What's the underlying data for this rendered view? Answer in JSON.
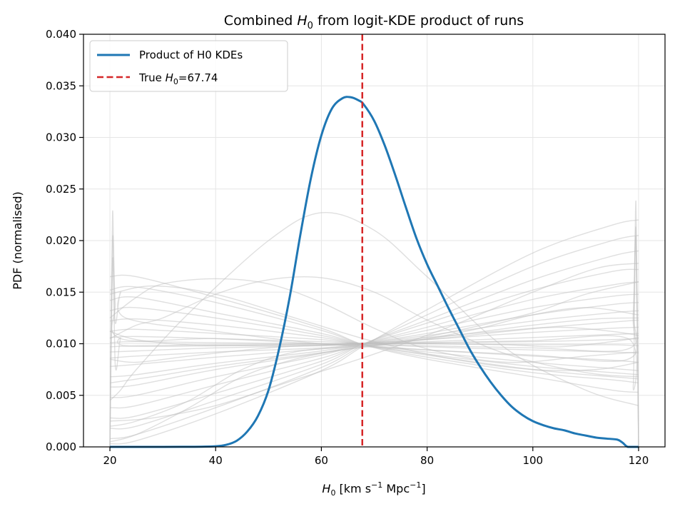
{
  "chart_data": {
    "type": "line",
    "title_prefix": "Combined ",
    "title_symbol": "H",
    "title_sub": "0",
    "title_suffix": " from logit-KDE product of runs",
    "xlabel_symbol": "H",
    "xlabel_sub": "0",
    "xlabel_units_a": " [km s",
    "xlabel_exp_a": "−1",
    "xlabel_units_b": " Mpc",
    "xlabel_exp_b": "−1",
    "xlabel_close": "]",
    "ylabel": "PDF (normalised)",
    "xlim": [
      15,
      125
    ],
    "ylim": [
      0,
      0.04
    ],
    "xticks": [
      "20",
      "40",
      "60",
      "80",
      "100",
      "120"
    ],
    "yticks": [
      "0.000",
      "0.005",
      "0.010",
      "0.015",
      "0.020",
      "0.025",
      "0.030",
      "0.035",
      "0.040"
    ],
    "grid": true,
    "legend_position": "upper-left",
    "legend_product": "Product of H0 KDEs",
    "legend_true_prefix": "True ",
    "legend_true_symbol": "H",
    "legend_true_sub": "0",
    "legend_true_suffix": "=67.74",
    "true_h0": 67.74,
    "product_series": {
      "name": "Product of H0 KDEs",
      "color": "#1f77b4",
      "x": [
        20,
        30,
        36,
        40,
        42,
        44,
        46,
        48,
        50,
        52,
        54,
        56,
        58,
        60,
        62,
        64,
        65.5,
        67,
        68,
        70,
        72,
        74,
        76,
        78,
        80,
        82,
        84,
        86,
        88,
        90,
        92,
        94,
        96,
        98,
        100,
        102,
        104,
        106,
        108,
        110,
        112,
        114,
        116,
        117,
        118,
        120
      ],
      "y": [
        0,
        0,
        1e-05,
        6e-05,
        0.0002,
        0.0006,
        0.0015,
        0.003,
        0.0055,
        0.0095,
        0.0145,
        0.0205,
        0.026,
        0.0302,
        0.0328,
        0.0338,
        0.0339,
        0.0336,
        0.0332,
        0.0316,
        0.0292,
        0.0263,
        0.0232,
        0.0202,
        0.0177,
        0.0156,
        0.0135,
        0.0115,
        0.0095,
        0.0078,
        0.0063,
        0.005,
        0.0039,
        0.0031,
        0.0025,
        0.0021,
        0.0018,
        0.0016,
        0.0013,
        0.0011,
        0.0009,
        0.0008,
        0.0007,
        0.0004,
        0,
        0
      ]
    },
    "true_line": {
      "color": "#d62728"
    },
    "runs_color": "#bfbfbf",
    "runs": [
      {
        "x": [
          20,
          25,
          40,
          60,
          68,
          80,
          100,
          115,
          120
        ],
        "y": [
          0.0165,
          0.0165,
          0.0145,
          0.0115,
          0.0099,
          0.0085,
          0.0068,
          0.0055,
          0.0053
        ]
      },
      {
        "x": [
          20,
          25,
          40,
          60,
          68,
          80,
          100,
          115,
          120
        ],
        "y": [
          0.0152,
          0.0155,
          0.014,
          0.0113,
          0.0099,
          0.0087,
          0.0072,
          0.0065,
          0.0062
        ]
      },
      {
        "x": [
          20,
          25,
          40,
          60,
          68,
          80,
          100,
          115,
          120
        ],
        "y": [
          0.0142,
          0.0145,
          0.013,
          0.011,
          0.0099,
          0.0089,
          0.0075,
          0.0068,
          0.0066
        ]
      },
      {
        "x": [
          20,
          25,
          40,
          60,
          68,
          80,
          100,
          115,
          120
        ],
        "y": [
          0.0132,
          0.0135,
          0.0125,
          0.0108,
          0.0099,
          0.009,
          0.0078,
          0.0072,
          0.007
        ]
      },
      {
        "x": [
          20,
          25,
          40,
          60,
          68,
          80,
          100,
          115,
          120
        ],
        "y": [
          0.0122,
          0.0124,
          0.0118,
          0.0106,
          0.0099,
          0.0092,
          0.0082,
          0.0076,
          0.0074
        ]
      },
      {
        "x": [
          20,
          25,
          40,
          60,
          68,
          80,
          100,
          115,
          120
        ],
        "y": [
          0.0112,
          0.0114,
          0.011,
          0.0104,
          0.0099,
          0.0094,
          0.0088,
          0.0084,
          0.0082
        ]
      },
      {
        "x": [
          20,
          25,
          40,
          60,
          68,
          80,
          100,
          115,
          120
        ],
        "y": [
          0.0106,
          0.0107,
          0.0105,
          0.0102,
          0.01,
          0.0097,
          0.0094,
          0.0092,
          0.0091
        ]
      },
      {
        "x": [
          20,
          25,
          40,
          60,
          68,
          80,
          100,
          115,
          120
        ],
        "y": [
          0.0101,
          0.0102,
          0.0101,
          0.01,
          0.01,
          0.01,
          0.0099,
          0.0099,
          0.0098
        ]
      },
      {
        "x": [
          20,
          25,
          40,
          60,
          68,
          80,
          100,
          115,
          120
        ],
        "y": [
          0.0097,
          0.0098,
          0.0099,
          0.0099,
          0.01,
          0.0101,
          0.0102,
          0.0104,
          0.0105
        ]
      },
      {
        "x": [
          20,
          25,
          40,
          60,
          68,
          80,
          100,
          115,
          120
        ],
        "y": [
          0.0092,
          0.0093,
          0.0096,
          0.0098,
          0.01,
          0.0102,
          0.0106,
          0.0109,
          0.011
        ]
      },
      {
        "x": [
          20,
          25,
          40,
          60,
          68,
          80,
          100,
          115,
          120
        ],
        "y": [
          0.0086,
          0.0088,
          0.0092,
          0.0096,
          0.01,
          0.0104,
          0.0111,
          0.0115,
          0.0116
        ]
      },
      {
        "x": [
          20,
          25,
          40,
          60,
          68,
          80,
          100,
          115,
          120
        ],
        "y": [
          0.0078,
          0.008,
          0.0087,
          0.0095,
          0.01,
          0.0106,
          0.0115,
          0.0121,
          0.0123
        ]
      },
      {
        "x": [
          20,
          25,
          40,
          60,
          68,
          80,
          100,
          115,
          120
        ],
        "y": [
          0.0068,
          0.007,
          0.0081,
          0.0093,
          0.01,
          0.0108,
          0.0122,
          0.013,
          0.0132
        ]
      },
      {
        "x": [
          20,
          25,
          40,
          60,
          68,
          80,
          100,
          115,
          120
        ],
        "y": [
          0.0058,
          0.006,
          0.0075,
          0.0091,
          0.01,
          0.011,
          0.0128,
          0.0138,
          0.014
        ]
      },
      {
        "x": [
          20,
          25,
          40,
          60,
          68,
          80,
          100,
          115,
          120
        ],
        "y": [
          0.0048,
          0.005,
          0.0068,
          0.0089,
          0.01,
          0.0113,
          0.0135,
          0.0146,
          0.0148
        ]
      },
      {
        "x": [
          20,
          25,
          40,
          60,
          68,
          80,
          100,
          115,
          120
        ],
        "y": [
          0.0038,
          0.004,
          0.006,
          0.0086,
          0.01,
          0.0116,
          0.0143,
          0.0157,
          0.016
        ]
      },
      {
        "x": [
          20,
          25,
          40,
          60,
          68,
          80,
          100,
          115,
          120
        ],
        "y": [
          0.0028,
          0.003,
          0.0052,
          0.0083,
          0.01,
          0.012,
          0.0152,
          0.017,
          0.0172
        ]
      },
      {
        "x": [
          20,
          25,
          40,
          60,
          68,
          80,
          100,
          115,
          120
        ],
        "y": [
          0.0018,
          0.002,
          0.0045,
          0.008,
          0.01,
          0.0123,
          0.0162,
          0.0185,
          0.019
        ]
      },
      {
        "x": [
          20,
          25,
          40,
          60,
          68,
          80,
          100,
          115,
          120
        ],
        "y": [
          0.0008,
          0.0012,
          0.0038,
          0.0077,
          0.0099,
          0.0128,
          0.0175,
          0.02,
          0.0205
        ]
      },
      {
        "x": [
          20,
          25,
          40,
          60,
          68,
          80,
          100,
          115,
          120
        ],
        "y": [
          0.0003,
          0.0006,
          0.0032,
          0.0074,
          0.0098,
          0.0133,
          0.0188,
          0.0215,
          0.022
        ]
      },
      {
        "x": [
          20,
          22,
          25,
          35,
          50,
          60,
          70,
          80,
          95,
          110,
          120
        ],
        "y": [
          0.0045,
          0.0055,
          0.0075,
          0.013,
          0.02,
          0.0227,
          0.021,
          0.0165,
          0.0095,
          0.0055,
          0.004
        ]
      },
      {
        "x": [
          20,
          25,
          30,
          40,
          50,
          60,
          70,
          80,
          95,
          110,
          120
        ],
        "y": [
          0.0105,
          0.0118,
          0.0125,
          0.0148,
          0.0162,
          0.0164,
          0.015,
          0.0123,
          0.009,
          0.0072,
          0.0068
        ]
      },
      {
        "x": [
          20,
          25,
          30,
          40,
          50,
          60,
          70,
          80,
          95,
          110,
          120
        ],
        "y": [
          0.0125,
          0.0145,
          0.0158,
          0.0163,
          0.0158,
          0.014,
          0.0115,
          0.0095,
          0.0082,
          0.0088,
          0.0092
        ]
      },
      {
        "x": [
          20,
          25,
          35,
          45,
          55,
          65,
          75,
          85,
          100,
          110,
          120
        ],
        "y": [
          0.0005,
          0.0012,
          0.0038,
          0.0068,
          0.0085,
          0.0095,
          0.0102,
          0.0112,
          0.013,
          0.0148,
          0.016
        ]
      },
      {
        "x": [
          20,
          25,
          35,
          45,
          55,
          68,
          80,
          90,
          100,
          110,
          120
        ],
        "y": [
          0.002,
          0.0025,
          0.0045,
          0.0075,
          0.0092,
          0.0098,
          0.0105,
          0.0115,
          0.0128,
          0.0135,
          0.0128
        ]
      },
      {
        "x": [
          20,
          25,
          35,
          50,
          65,
          80,
          95,
          105,
          115,
          120
        ],
        "y": [
          0.0085,
          0.0082,
          0.0088,
          0.0096,
          0.01,
          0.0104,
          0.0112,
          0.0116,
          0.0112,
          0.0108
        ]
      },
      {
        "x": [
          20,
          25,
          35,
          50,
          65,
          80,
          95,
          105,
          115,
          120
        ],
        "y": [
          0.0112,
          0.0104,
          0.0099,
          0.0098,
          0.0099,
          0.01,
          0.0099,
          0.0097,
          0.0102,
          0.0106
        ]
      },
      {
        "x": [
          20,
          28,
          40,
          55,
          70,
          85,
          100,
          112,
          120
        ],
        "y": [
          0.0025,
          0.0028,
          0.004,
          0.0065,
          0.009,
          0.0118,
          0.015,
          0.0173,
          0.0178
        ]
      },
      {
        "x": [
          20,
          28,
          40,
          55,
          70,
          85,
          100,
          112,
          120
        ],
        "y": [
          0.0148,
          0.0156,
          0.0148,
          0.0125,
          0.0102,
          0.0085,
          0.0075,
          0.0075,
          0.0082
        ]
      },
      {
        "x": [
          20,
          28,
          40,
          55,
          70,
          85,
          100,
          112,
          120
        ],
        "y": [
          0.0062,
          0.0068,
          0.0078,
          0.0088,
          0.0098,
          0.0108,
          0.0118,
          0.0124,
          0.0125
        ]
      },
      {
        "x": [
          20,
          20.5,
          21,
          22,
          23,
          40,
          60,
          80,
          100,
          118,
          119,
          119.5,
          120
        ],
        "y": [
          0,
          0.018,
          0.012,
          0.015,
          0.0125,
          0.0112,
          0.01,
          0.0094,
          0.0089,
          0.0085,
          0.0125,
          0.021,
          0
        ]
      },
      {
        "x": [
          20,
          20.5,
          21,
          22,
          23,
          40,
          60,
          80,
          100,
          118,
          119,
          119.5,
          120
        ],
        "y": [
          0,
          0.0228,
          0.008,
          0.0105,
          0.0098,
          0.0098,
          0.01,
          0.0101,
          0.0103,
          0.0105,
          0.006,
          0.0238,
          0
        ]
      },
      {
        "x": [
          20,
          20.5,
          21,
          22,
          40,
          60,
          80,
          100,
          118,
          119,
          119.5,
          120
        ],
        "y": [
          0,
          0.02,
          0.014,
          0.0105,
          0.0105,
          0.01,
          0.0098,
          0.0096,
          0.0095,
          0.013,
          0.02,
          0
        ]
      }
    ]
  }
}
